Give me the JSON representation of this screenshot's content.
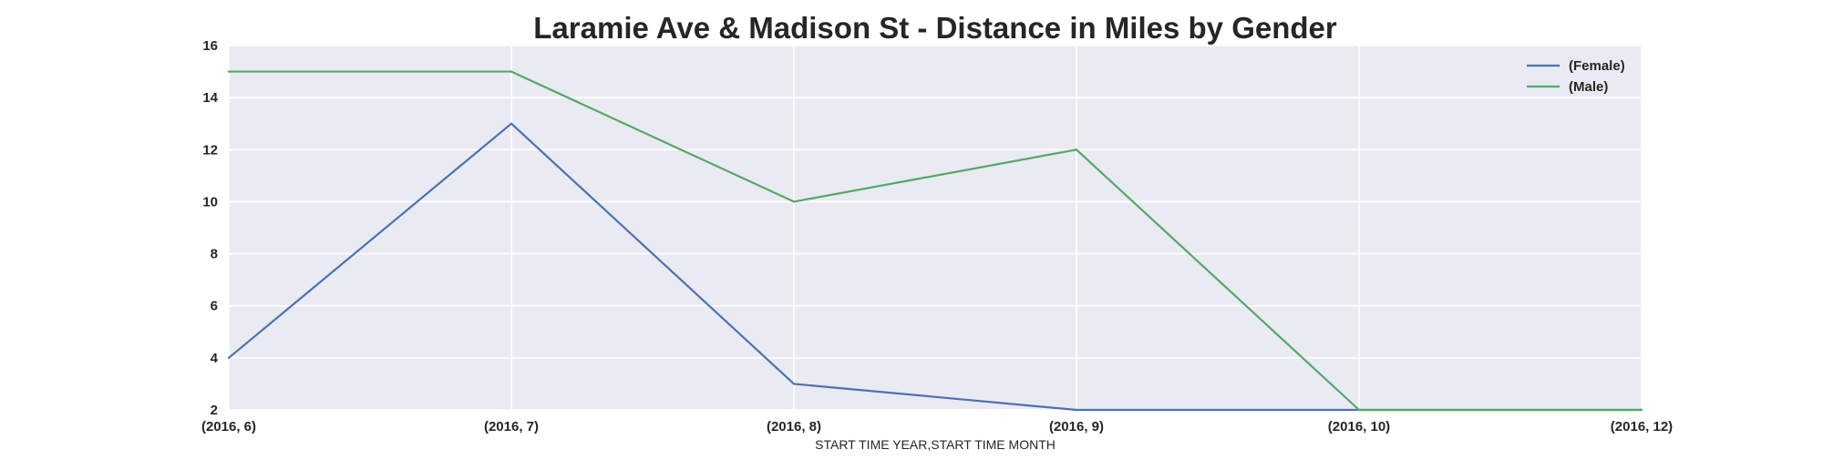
{
  "chart_data": {
    "type": "line",
    "title": "Laramie Ave & Madison St - Distance in Miles by Gender",
    "xlabel": "START TIME YEAR,START TIME MONTH",
    "ylabel": "",
    "categories": [
      "(2016, 6)",
      "(2016, 7)",
      "(2016, 8)",
      "(2016, 9)",
      "(2016, 10)",
      "(2016, 12)"
    ],
    "ylim": [
      2,
      16
    ],
    "yticks": [
      2,
      4,
      6,
      8,
      10,
      12,
      14,
      16
    ],
    "grid": true,
    "legend_position": "top-right",
    "series": [
      {
        "name": "(Female)",
        "color": "#4c72b0",
        "values": [
          4,
          13,
          3,
          2,
          2,
          2
        ]
      },
      {
        "name": "(Male)",
        "color": "#55a868",
        "values": [
          15,
          15,
          10,
          12,
          2,
          2
        ]
      }
    ]
  },
  "colors": {
    "plot_background": "#eaeaf2",
    "grid": "#ffffff",
    "text": "#262626"
  }
}
